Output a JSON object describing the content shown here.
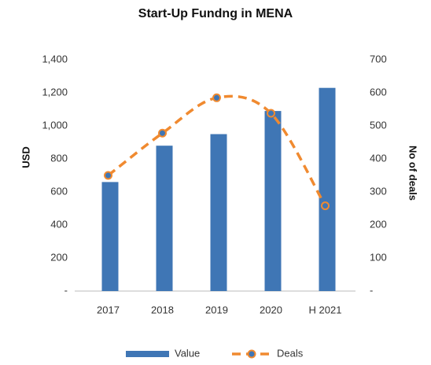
{
  "chart_data": {
    "type": "bar-line",
    "title": "Start-Up Fundng in MENA",
    "ylabel": "USD",
    "y2label": "No of deals",
    "categories": [
      "2017",
      "2018",
      "2019",
      "2020",
      "H 2021"
    ],
    "series": [
      {
        "name": "Value",
        "type": "bar",
        "color": "#3f76b5",
        "values": [
          660,
          880,
          950,
          1090,
          1230
        ]
      },
      {
        "name": "Deals",
        "type": "line",
        "color": "#f08a30",
        "axis": "y2",
        "dashed": true,
        "smooth": true,
        "values": [
          350,
          478,
          585,
          538,
          258
        ]
      }
    ],
    "ylim": [
      0,
      1400
    ],
    "yticks": [
      {
        "value": 0,
        "label": "-"
      },
      200,
      400,
      600,
      800,
      {
        "value": 1000,
        "label": "1,000"
      },
      {
        "value": 1200,
        "label": "1,200"
      },
      {
        "value": 1400,
        "label": "1,400"
      }
    ],
    "y2lim": [
      0,
      700
    ],
    "y2ticks": [
      {
        "value": 0,
        "label": "-"
      },
      100,
      200,
      300,
      400,
      500,
      600,
      700
    ],
    "legend": "bottom"
  }
}
